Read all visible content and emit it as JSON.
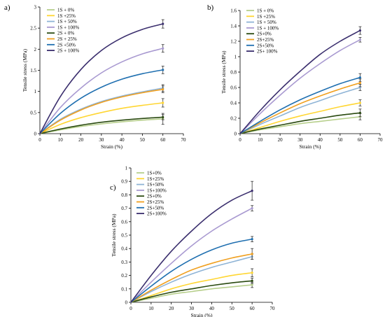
{
  "chart_data": [
    {
      "type": "line",
      "panel_label": "a)",
      "xlabel": "Strain (%)",
      "ylabel": "Tensile stress (MPa)",
      "xlim": [
        0,
        70
      ],
      "ylim": [
        0,
        3
      ],
      "x_ticks": [
        "0",
        "10",
        "20",
        "30",
        "40",
        "50",
        "60",
        "70"
      ],
      "y_ticks": [
        "0",
        "0.5",
        "1",
        "1.5",
        "2",
        "2.5",
        "3"
      ],
      "x_tick_values": [
        0,
        10,
        20,
        30,
        40,
        50,
        60,
        70
      ],
      "y_tick_values": [
        0,
        0.5,
        1,
        1.5,
        2,
        2.5,
        3
      ],
      "legend_position": "top-left",
      "series": [
        {
          "name": "1S + 0%",
          "color": "#b7cf8c",
          "x": [
            0,
            10,
            20,
            30,
            40,
            50,
            60
          ],
          "y": [
            0,
            0.09,
            0.17,
            0.23,
            0.28,
            0.32,
            0.35
          ],
          "err": 0.13
        },
        {
          "name": "1S +25%",
          "color": "#ffd633",
          "x": [
            0,
            10,
            20,
            30,
            40,
            50,
            60
          ],
          "y": [
            0,
            0.22,
            0.38,
            0.5,
            0.6,
            0.67,
            0.73
          ],
          "err": 0.1
        },
        {
          "name": "1S + 50%",
          "color": "#8fb4d6",
          "x": [
            0,
            10,
            20,
            30,
            40,
            50,
            60
          ],
          "y": [
            0,
            0.34,
            0.58,
            0.76,
            0.89,
            0.99,
            1.08
          ],
          "err": 0.08
        },
        {
          "name": "1S + 100%",
          "color": "#a99ad1",
          "x": [
            0,
            10,
            20,
            30,
            40,
            50,
            60
          ],
          "y": [
            0,
            0.62,
            1.08,
            1.44,
            1.7,
            1.89,
            2.02
          ],
          "err": 0.09
        },
        {
          "name": "2S + 0%",
          "color": "#2a4a10",
          "x": [
            0,
            10,
            20,
            30,
            40,
            50,
            60
          ],
          "y": [
            0,
            0.11,
            0.2,
            0.27,
            0.32,
            0.36,
            0.39
          ],
          "err": 0.06
        },
        {
          "name": "2S + 25%",
          "color": "#f0a020",
          "x": [
            0,
            10,
            20,
            30,
            40,
            50,
            60
          ],
          "y": [
            0,
            0.32,
            0.56,
            0.74,
            0.87,
            0.97,
            1.05
          ],
          "err": 0.08
        },
        {
          "name": "2S +50%",
          "color": "#1f6fb0",
          "x": [
            0,
            10,
            20,
            30,
            40,
            50,
            60
          ],
          "y": [
            0,
            0.48,
            0.84,
            1.1,
            1.29,
            1.42,
            1.51
          ],
          "err": 0.09
        },
        {
          "name": "2S + 100%",
          "color": "#3b2f6e",
          "x": [
            0,
            10,
            20,
            30,
            40,
            50,
            60
          ],
          "y": [
            0,
            0.88,
            1.52,
            1.97,
            2.27,
            2.47,
            2.6
          ],
          "err": 0.1
        }
      ]
    },
    {
      "type": "line",
      "panel_label": "b)",
      "xlabel": "Strain (%)",
      "ylabel": "Tensile stress (MPa)",
      "xlim": [
        0,
        70
      ],
      "ylim": [
        0,
        1.6
      ],
      "x_ticks": [
        "0",
        "10",
        "20",
        "30",
        "40",
        "50",
        "60",
        "70"
      ],
      "y_ticks": [
        "0",
        "0.2",
        "0.4",
        "0.6",
        "0.8",
        "1",
        "1.2",
        "1.4",
        "1.6"
      ],
      "x_tick_values": [
        0,
        10,
        20,
        30,
        40,
        50,
        60,
        70
      ],
      "y_tick_values": [
        0,
        0.2,
        0.4,
        0.6,
        0.8,
        1.0,
        1.2,
        1.4,
        1.6
      ],
      "legend_position": "top-left",
      "series": [
        {
          "name": "1S + 0%",
          "color": "#b7cf8c",
          "x": [
            0,
            10,
            20,
            30,
            40,
            50,
            60
          ],
          "y": [
            0,
            0.05,
            0.09,
            0.13,
            0.16,
            0.19,
            0.22
          ],
          "err": 0.04
        },
        {
          "name": "1S +25%",
          "color": "#ffd633",
          "x": [
            0,
            10,
            20,
            30,
            40,
            50,
            60
          ],
          "y": [
            0,
            0.08,
            0.16,
            0.23,
            0.29,
            0.35,
            0.4
          ],
          "err": 0.04
        },
        {
          "name": "1S + 50%",
          "color": "#8fb4d6",
          "x": [
            0,
            10,
            20,
            30,
            40,
            50,
            60
          ],
          "y": [
            0,
            0.12,
            0.23,
            0.34,
            0.43,
            0.52,
            0.6
          ],
          "err": 0.04
        },
        {
          "name": "1S + 100%",
          "color": "#a99ad1",
          "x": [
            0,
            10,
            20,
            30,
            40,
            50,
            60
          ],
          "y": [
            0,
            0.26,
            0.5,
            0.72,
            0.91,
            1.08,
            1.22
          ],
          "err": 0.03
        },
        {
          "name": "2S+0%",
          "color": "#2a4a10",
          "x": [
            0,
            10,
            20,
            30,
            40,
            50,
            60
          ],
          "y": [
            0,
            0.06,
            0.11,
            0.16,
            0.2,
            0.24,
            0.27
          ],
          "err": 0.05
        },
        {
          "name": "2S+25%",
          "color": "#f0a020",
          "x": [
            0,
            10,
            20,
            30,
            40,
            50,
            60
          ],
          "y": [
            0,
            0.14,
            0.27,
            0.39,
            0.49,
            0.58,
            0.66
          ],
          "err": 0.05
        },
        {
          "name": "2S+50%",
          "color": "#1f6fb0",
          "x": [
            0,
            10,
            20,
            30,
            40,
            50,
            60
          ],
          "y": [
            0,
            0.16,
            0.31,
            0.44,
            0.55,
            0.65,
            0.73
          ],
          "err": 0.05
        },
        {
          "name": "2S+ 100%",
          "color": "#3b2f6e",
          "x": [
            0,
            10,
            20,
            30,
            40,
            50,
            60
          ],
          "y": [
            0,
            0.3,
            0.57,
            0.81,
            1.03,
            1.2,
            1.34
          ],
          "err": 0.05
        }
      ]
    },
    {
      "type": "line",
      "panel_label": "c)",
      "xlabel": "Strain (%)",
      "ylabel": "Tensile stress (MPa)",
      "xlim": [
        0,
        70
      ],
      "ylim": [
        0,
        1
      ],
      "x_ticks": [
        "0",
        "10",
        "20",
        "30",
        "40",
        "50",
        "60",
        "70"
      ],
      "y_ticks": [
        "0",
        "0.1",
        "0.2",
        "0.3",
        "0.4",
        "0.5",
        "0.6",
        "0.7",
        "0.8",
        "0.9",
        "1"
      ],
      "x_tick_values": [
        0,
        10,
        20,
        30,
        40,
        50,
        60,
        70
      ],
      "y_tick_values": [
        0,
        0.1,
        0.2,
        0.3,
        0.4,
        0.5,
        0.6,
        0.7,
        0.8,
        0.9,
        1.0
      ],
      "legend_position": "top-left",
      "series": [
        {
          "name": "1S+0%",
          "color": "#b7cf8c",
          "x": [
            0,
            10,
            20,
            30,
            40,
            50,
            60
          ],
          "y": [
            0,
            0.03,
            0.06,
            0.08,
            0.1,
            0.115,
            0.13
          ],
          "err": 0.02
        },
        {
          "name": "1S+25%",
          "color": "#ffd633",
          "x": [
            0,
            10,
            20,
            30,
            40,
            50,
            60
          ],
          "y": [
            0,
            0.05,
            0.1,
            0.14,
            0.17,
            0.2,
            0.22
          ],
          "err": 0.03
        },
        {
          "name": "1S+50%",
          "color": "#8fb4d6",
          "x": [
            0,
            10,
            20,
            30,
            40,
            50,
            60
          ],
          "y": [
            0,
            0.08,
            0.15,
            0.21,
            0.26,
            0.3,
            0.34
          ],
          "err": 0.02
        },
        {
          "name": "1S+100%",
          "color": "#a99ad1",
          "x": [
            0,
            10,
            20,
            30,
            40,
            50,
            60
          ],
          "y": [
            0,
            0.15,
            0.29,
            0.42,
            0.53,
            0.62,
            0.7
          ],
          "err": 0.02
        },
        {
          "name": "2S+0%",
          "color": "#2a4a10",
          "x": [
            0,
            10,
            20,
            30,
            40,
            50,
            60
          ],
          "y": [
            0,
            0.04,
            0.075,
            0.1,
            0.125,
            0.145,
            0.16
          ],
          "err": 0.02
        },
        {
          "name": "2S+25%",
          "color": "#f0a020",
          "x": [
            0,
            10,
            20,
            30,
            40,
            50,
            60
          ],
          "y": [
            0,
            0.09,
            0.17,
            0.24,
            0.29,
            0.33,
            0.36
          ],
          "err": 0.04
        },
        {
          "name": "2S+50%",
          "color": "#1f6fb0",
          "x": [
            0,
            10,
            20,
            30,
            40,
            50,
            60
          ],
          "y": [
            0,
            0.12,
            0.23,
            0.32,
            0.39,
            0.44,
            0.47
          ],
          "err": 0.02
        },
        {
          "name": "2S+100%",
          "color": "#3b2f6e",
          "x": [
            0,
            10,
            20,
            30,
            40,
            50,
            60
          ],
          "y": [
            0,
            0.2,
            0.38,
            0.53,
            0.66,
            0.76,
            0.83
          ],
          "err": 0.07
        }
      ]
    }
  ]
}
